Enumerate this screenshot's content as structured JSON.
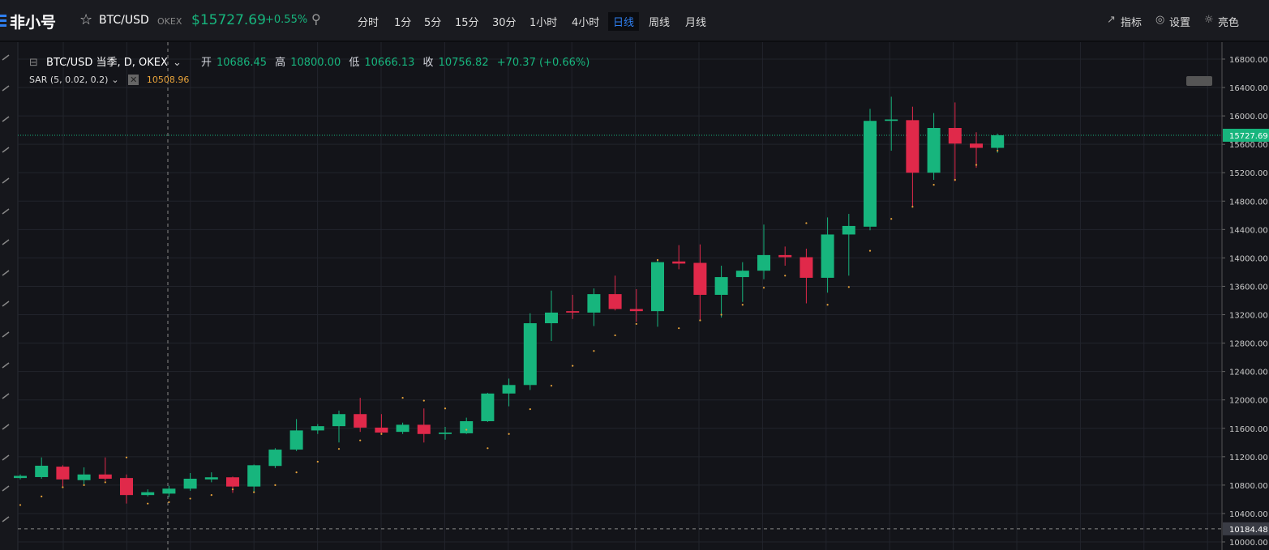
{
  "header": {
    "logo": "非小号",
    "pair": "BTC/USD",
    "exchange": "OKEX",
    "price": "$15727.69",
    "change": "+0.55%",
    "intervals": [
      "分时",
      "1分",
      "5分",
      "15分",
      "30分",
      "1小时",
      "4小时",
      "日线",
      "周线",
      "月线"
    ],
    "tools": [
      "指标",
      "设置",
      "亮色"
    ]
  },
  "legend": {
    "symbol": "BTC/USD 当季, D, OKEX",
    "open_label": "开",
    "open": "10686.45",
    "high_label": "高",
    "high": "10800.00",
    "low_label": "低",
    "low": "10666.13",
    "close_label": "收",
    "close": "10756.82",
    "change": "+70.37 (+0.66%)",
    "indicator": "SAR (5, 0.02, 0.2)",
    "indicator_value": "10508.96"
  },
  "chart_data": {
    "type": "candlestick",
    "open": [
      10900,
      10913,
      11060,
      10870,
      10950,
      10900,
      10660,
      10680,
      10750,
      10880,
      10910,
      10780,
      11070,
      11300,
      11570,
      11630,
      11800,
      11610,
      11550,
      11650,
      11520,
      11530,
      11700,
      12090,
      12210,
      13080,
      13250,
      13230,
      13490,
      13280,
      13250,
      13950,
      13930,
      13480,
      13730,
      13820,
      14040,
      14010,
      13720,
      14330,
      14440,
      15930,
      15940,
      15200,
      15830,
      15610,
      15550
    ],
    "high": [
      10950,
      11190,
      11080,
      11050,
      11190,
      10950,
      10740,
      10790,
      10970,
      10980,
      10920,
      11090,
      11320,
      11730,
      11660,
      11850,
      12030,
      11800,
      11680,
      11880,
      11620,
      11750,
      12100,
      12300,
      13220,
      13540,
      13480,
      13570,
      13750,
      13560,
      13960,
      14180,
      14190,
      13890,
      13940,
      14470,
      14160,
      14130,
      14570,
      14620,
      16100,
      16270,
      16130,
      16040,
      16190,
      15770,
      15750
    ],
    "low": [
      10880,
      10890,
      10760,
      10800,
      10860,
      10540,
      10640,
      10630,
      10720,
      10840,
      10690,
      10690,
      11040,
      11280,
      11520,
      11400,
      11550,
      11530,
      11520,
      11400,
      11440,
      11520,
      11690,
      11910,
      12140,
      12830,
      13140,
      13040,
      13260,
      13100,
      13030,
      13840,
      13120,
      13160,
      13380,
      13700,
      13890,
      13360,
      13510,
      13750,
      14390,
      15510,
      14710,
      15100,
      15080,
      15270,
      15480
    ],
    "close": [
      10930,
      11073,
      10880,
      10950,
      10890,
      10660,
      10700,
      10750,
      10890,
      10910,
      10780,
      11080,
      11300,
      11570,
      11630,
      11800,
      11610,
      11540,
      11650,
      11520,
      11540,
      11700,
      12090,
      12210,
      13080,
      13230,
      13230,
      13490,
      13280,
      13250,
      13940,
      13920,
      13480,
      13730,
      13820,
      14040,
      14010,
      13720,
      14330,
      14450,
      15930,
      15950,
      15200,
      15830,
      15610,
      15550,
      15727.69
    ],
    "sar": [
      10520,
      10640,
      10770,
      10800,
      10840,
      11190,
      10540,
      10560,
      10610,
      10660,
      10740,
      10700,
      10800,
      10980,
      11130,
      11310,
      11430,
      11520,
      12030,
      11990,
      11880,
      11580,
      11320,
      11520,
      11870,
      12200,
      12480,
      12690,
      12910,
      13070,
      13970,
      13010,
      13120,
      13200,
      13340,
      13580,
      13750,
      14490,
      13340,
      13590,
      14100,
      14550,
      14720,
      15030,
      15100,
      15310,
      15510
    ],
    "up_color": "#17b57d",
    "down_color": "#e0294a",
    "sar_color": "#e8a33a",
    "ylim": [
      9886,
      17005
    ],
    "yticks": [
      {
        "value": 10000,
        "label": "10000.00"
      },
      {
        "value": 10400,
        "label": "10400.00"
      },
      {
        "value": 10800,
        "label": "10800.00"
      },
      {
        "value": 11200,
        "label": "11200.00"
      },
      {
        "value": 11600,
        "label": "11600.00"
      },
      {
        "value": 12000,
        "label": "12000.00"
      },
      {
        "value": 12400,
        "label": "12400.00"
      },
      {
        "value": 12800,
        "label": "12800.00"
      },
      {
        "value": 13200,
        "label": "13200.00"
      },
      {
        "value": 13600,
        "label": "13600.00"
      },
      {
        "value": 14000,
        "label": "14000.00"
      },
      {
        "value": 14400,
        "label": "14400.00"
      },
      {
        "value": 14800,
        "label": "14800.00"
      },
      {
        "value": 15200,
        "label": "15200.00"
      },
      {
        "value": 15600,
        "label": "15600.00"
      },
      {
        "value": 16000,
        "label": "16000.00"
      },
      {
        "value": 16400,
        "label": "16400.00"
      },
      {
        "value": 16800,
        "label": "16800.00"
      }
    ],
    "last_price": {
      "value": 15727.69,
      "label": "15727.69"
    },
    "crosshair_price": {
      "value": 10184.48,
      "label": "10184.48"
    }
  }
}
